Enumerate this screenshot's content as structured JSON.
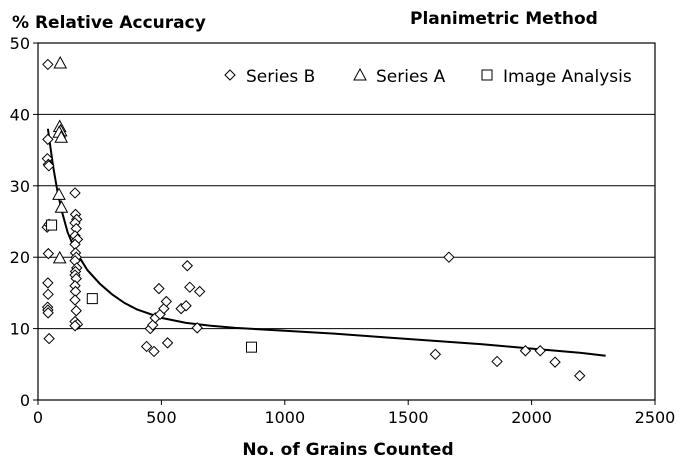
{
  "chart_data": {
    "type": "scatter",
    "title": "Planimetric Method",
    "ylabel": "% Relative Accuracy",
    "xlabel": "No. of Grains Counted",
    "xlim": [
      0,
      2500
    ],
    "ylim": [
      0,
      50
    ],
    "xticks": [
      "0",
      "500",
      "1000",
      "1500",
      "2000",
      "2500"
    ],
    "yticks": [
      "0",
      "10",
      "20",
      "30",
      "40",
      "50"
    ],
    "grid": "horizontal",
    "legend_position": "top-right",
    "series": [
      {
        "name": "Series B",
        "marker": "diamond",
        "points": [
          [
            40,
            47
          ],
          [
            40,
            36.5
          ],
          [
            38,
            33.8
          ],
          [
            42,
            33
          ],
          [
            44,
            32.8
          ],
          [
            37,
            24.2
          ],
          [
            45,
            24.6
          ],
          [
            42,
            20.5
          ],
          [
            40,
            16.4
          ],
          [
            41,
            14.8
          ],
          [
            39,
            13
          ],
          [
            40,
            12.6
          ],
          [
            41,
            12.2
          ],
          [
            45,
            8.6
          ],
          [
            150,
            29
          ],
          [
            152,
            26
          ],
          [
            157,
            25.3
          ],
          [
            150,
            24.8
          ],
          [
            155,
            24
          ],
          [
            150,
            23
          ],
          [
            160,
            22.5
          ],
          [
            150,
            21.8
          ],
          [
            152,
            20.6
          ],
          [
            155,
            20
          ],
          [
            150,
            19.5
          ],
          [
            157,
            18.5
          ],
          [
            152,
            18
          ],
          [
            150,
            17.5
          ],
          [
            155,
            17
          ],
          [
            150,
            16
          ],
          [
            152,
            15.2
          ],
          [
            150,
            14
          ],
          [
            155,
            12.5
          ],
          [
            150,
            11
          ],
          [
            160,
            10.6
          ],
          [
            150,
            10.4
          ],
          [
            440,
            7.5
          ],
          [
            455,
            10
          ],
          [
            465,
            10.5
          ],
          [
            470,
            6.8
          ],
          [
            475,
            11.5
          ],
          [
            490,
            15.6
          ],
          [
            495,
            12
          ],
          [
            510,
            12.8
          ],
          [
            520,
            13.8
          ],
          [
            525,
            8
          ],
          [
            580,
            12.8
          ],
          [
            605,
            18.8
          ],
          [
            600,
            13.2
          ],
          [
            615,
            15.8
          ],
          [
            645,
            10.1
          ],
          [
            655,
            15.2
          ],
          [
            1610,
            6.4
          ],
          [
            1665,
            20
          ],
          [
            1860,
            5.4
          ],
          [
            1975,
            6.9
          ],
          [
            2035,
            6.9
          ],
          [
            2095,
            5.3
          ],
          [
            2195,
            3.4
          ]
        ]
      },
      {
        "name": "Series A",
        "marker": "triangle",
        "points": [
          [
            90,
            47.2
          ],
          [
            88,
            38.3
          ],
          [
            92,
            37.7
          ],
          [
            86,
            37.5
          ],
          [
            94,
            36.8
          ],
          [
            85,
            28.8
          ],
          [
            95,
            27
          ],
          [
            88,
            19.9
          ]
        ]
      },
      {
        "name": "Image Analysis",
        "marker": "square",
        "points": [
          [
            55,
            24.5
          ],
          [
            220,
            14.2
          ],
          [
            865,
            7.4
          ]
        ]
      }
    ],
    "trendline": [
      [
        40,
        38
      ],
      [
        60,
        33
      ],
      [
        80,
        29
      ],
      [
        100,
        26
      ],
      [
        120,
        23.5
      ],
      [
        150,
        21
      ],
      [
        200,
        18.2
      ],
      [
        250,
        16.3
      ],
      [
        300,
        14.8
      ],
      [
        350,
        13.6
      ],
      [
        400,
        12.7
      ],
      [
        500,
        11.5
      ],
      [
        600,
        10.8
      ],
      [
        700,
        10.4
      ],
      [
        800,
        10.1
      ],
      [
        1000,
        9.7
      ],
      [
        1200,
        9.3
      ],
      [
        1400,
        8.8
      ],
      [
        1600,
        8.3
      ],
      [
        1800,
        7.8
      ],
      [
        2000,
        7.2
      ],
      [
        2200,
        6.6
      ],
      [
        2300,
        6.2
      ]
    ]
  }
}
